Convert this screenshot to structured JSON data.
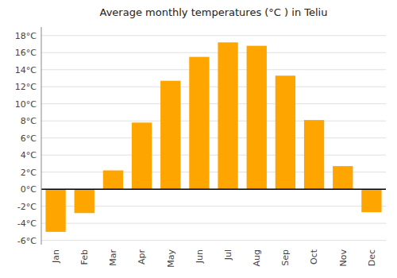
{
  "chart_data": {
    "type": "bar",
    "title": "Average monthly temperatures (°C ) in Teliu",
    "categories": [
      "Jan",
      "Feb",
      "Mar",
      "Apr",
      "May",
      "Jun",
      "Jul",
      "Aug",
      "Sep",
      "Oct",
      "Nov",
      "Dec"
    ],
    "values": [
      -5.0,
      -2.8,
      2.2,
      7.8,
      12.7,
      15.5,
      17.2,
      16.8,
      13.3,
      8.1,
      2.7,
      -2.7
    ],
    "color": "#FFA500",
    "ylim": [
      -6.5,
      19
    ],
    "yticks": [
      {
        "value": -6,
        "label": "-6°C"
      },
      {
        "value": -4,
        "label": "-4°C"
      },
      {
        "value": -2,
        "label": "-2°C"
      },
      {
        "value": 0,
        "label": "0°C"
      },
      {
        "value": 2,
        "label": "2°C"
      },
      {
        "value": 4,
        "label": "4°C"
      },
      {
        "value": 6,
        "label": "6°C"
      },
      {
        "value": 8,
        "label": "8°C"
      },
      {
        "value": 10,
        "label": "10°C"
      },
      {
        "value": 12,
        "label": "12°C"
      },
      {
        "value": 14,
        "label": "14°C"
      },
      {
        "value": 16,
        "label": "16°C"
      },
      {
        "value": 18,
        "label": "18°C"
      }
    ],
    "grid": true
  }
}
